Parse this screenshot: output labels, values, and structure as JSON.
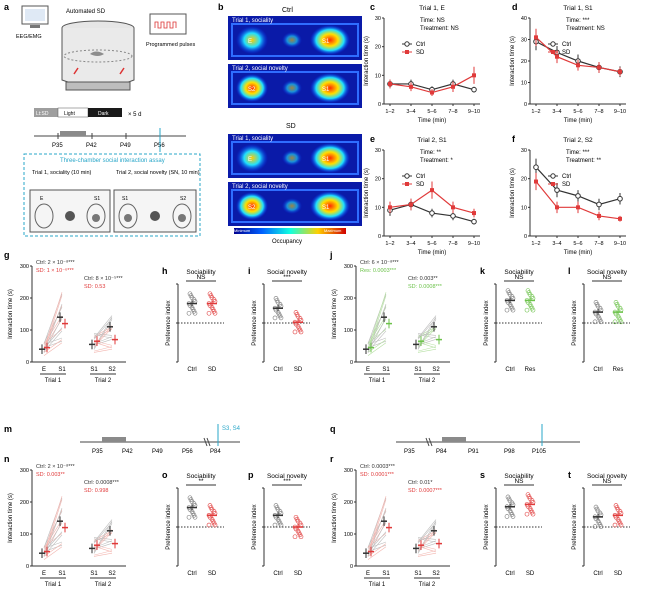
{
  "panel_a": {
    "letter": "a",
    "setup_label": "Automated SD",
    "eeg_label": "EEG/EMG",
    "pulses_label": "Programmed pulses",
    "schedule": {
      "light_sd": "Lt:SD",
      "light": "Light",
      "dark": "Dark",
      "repeat": "× 5 d"
    },
    "timeline": [
      "P35",
      "P42",
      "P49",
      "P56"
    ],
    "assay_title": "Three-chamber social interaction assay",
    "trial1": "Trial 1, sociality\n(10 min)",
    "trial2": "Trial 2, social novelty\n(SN, 10 min)",
    "chamber_labels": [
      "E",
      "S1",
      "S1",
      "S2"
    ]
  },
  "panel_b": {
    "letter": "b",
    "group_ctrl": "Ctrl",
    "group_sd": "SD",
    "tiles": [
      {
        "title": "Trial 1, sociality",
        "left": "E",
        "right": "S1"
      },
      {
        "title": "Trial 2, social novelty",
        "left": "S2",
        "right": "S1"
      },
      {
        "title": "Trial 1, sociality",
        "left": "E",
        "right": "S1"
      },
      {
        "title": "Trial 2, social novelty",
        "left": "S2",
        "right": "S1"
      }
    ],
    "colorbar_label": "Occupancy",
    "colorbar_min": "Minimum",
    "colorbar_max": "Maximum"
  },
  "chart_data": [
    {
      "id": "c",
      "type": "line",
      "title": "Trial 1, E",
      "categories": [
        "1–2",
        "3–4",
        "5–6",
        "7–8",
        "9–10"
      ],
      "xlabel": "Time (min)",
      "ylabel": "Interaction time (s)",
      "ylim": [
        0,
        30
      ],
      "yticks": [
        0,
        10,
        20,
        30
      ],
      "stats": [
        "Time: NS",
        "Treatment: NS"
      ],
      "series": [
        {
          "name": "Ctrl",
          "values": [
            7,
            7,
            5,
            7,
            5
          ],
          "err": [
            1.5,
            1.5,
            1.2,
            1.5,
            1
          ]
        },
        {
          "name": "SD",
          "values": [
            7,
            6,
            4,
            6,
            10
          ],
          "err": [
            1.5,
            1.5,
            1.2,
            1.8,
            3
          ]
        }
      ]
    },
    {
      "id": "d",
      "type": "line",
      "title": "Trial 1, S1",
      "categories": [
        "1–2",
        "3–4",
        "5–6",
        "7–8",
        "9–10"
      ],
      "xlabel": "Time (min)",
      "ylabel": "Interaction time (s)",
      "ylim": [
        0,
        40
      ],
      "yticks": [
        0,
        10,
        20,
        30,
        40
      ],
      "stats": [
        "Time: ***",
        "Treatment: NS"
      ],
      "series": [
        {
          "name": "Ctrl",
          "values": [
            29,
            24,
            20,
            17,
            15
          ],
          "err": [
            4,
            3,
            3,
            2.5,
            2.5
          ]
        },
        {
          "name": "SD",
          "values": [
            31,
            22,
            18,
            17,
            15
          ],
          "err": [
            4,
            3,
            2.5,
            2.5,
            2
          ]
        }
      ]
    },
    {
      "id": "e",
      "type": "line",
      "title": "Trial 2, S1",
      "categories": [
        "1–2",
        "3–4",
        "5–6",
        "7–8",
        "9–10"
      ],
      "xlabel": "Time (min)",
      "ylabel": "Interaction time (s)",
      "ylim": [
        0,
        30
      ],
      "yticks": [
        0,
        10,
        20,
        30
      ],
      "stats": [
        "Time: **",
        "Treatment: *"
      ],
      "series": [
        {
          "name": "Ctrl",
          "values": [
            9,
            11,
            8,
            7,
            5
          ],
          "err": [
            2,
            2,
            1.5,
            1.5,
            1
          ]
        },
        {
          "name": "SD",
          "values": [
            10,
            11,
            16,
            10,
            8
          ],
          "err": [
            2,
            2,
            3,
            2,
            1.5
          ]
        }
      ]
    },
    {
      "id": "f",
      "type": "line",
      "title": "Trial 2, S2",
      "categories": [
        "1–2",
        "3–4",
        "5–6",
        "7–8",
        "9–10"
      ],
      "xlabel": "Time (min)",
      "ylabel": "Interaction time (s)",
      "ylim": [
        0,
        30
      ],
      "yticks": [
        0,
        10,
        20,
        30
      ],
      "stats": [
        "Time: ***",
        "Treatment: **"
      ],
      "series": [
        {
          "name": "Ctrl",
          "values": [
            24,
            16,
            14,
            11,
            13
          ],
          "err": [
            3,
            2.5,
            2,
            2,
            2
          ]
        },
        {
          "name": "SD",
          "values": [
            19,
            10,
            10,
            7,
            6
          ],
          "err": [
            3,
            2,
            2,
            1.5,
            1
          ]
        }
      ]
    }
  ],
  "panel_g": {
    "letter": "g",
    "ylabel": "Interaction time (s)",
    "yticks": [
      0,
      100,
      200,
      300
    ],
    "ann": [
      "Ctrl: 2 × 10⁻⁸***",
      "SD: 1 × 10⁻⁶***",
      "Ctrl: 8 × 10⁻⁵***",
      "SD: 0.53"
    ],
    "x": [
      "E",
      "S1",
      "S1",
      "S2"
    ],
    "trials": [
      "Trial 1",
      "Trial 2"
    ]
  },
  "panel_h": {
    "letter": "h",
    "title": "Sociability",
    "sig": "NS",
    "ylabel": "Preference index",
    "groups": [
      "Ctrl",
      "SD"
    ]
  },
  "panel_i": {
    "letter": "i",
    "title": "Social novelty",
    "sig": "***",
    "ylabel": "Preference index",
    "groups": [
      "Ctrl",
      "SD"
    ]
  },
  "panel_j": {
    "letter": "j",
    "ylabel": "Interaction time (s)",
    "yticks": [
      0,
      100,
      200,
      300
    ],
    "ann": [
      "Ctrl: 6 × 10⁻⁸***",
      "Res: 0.0003***",
      "Ctrl: 0.003**",
      "SD: 0.0008***"
    ],
    "x": [
      "E",
      "S1",
      "S1",
      "S2"
    ],
    "trials": [
      "Trial 1",
      "Trial 2"
    ]
  },
  "panel_k": {
    "letter": "k",
    "title": "Sociability",
    "sig": "NS",
    "ylabel": "Preference index",
    "groups": [
      "Ctrl",
      "Res"
    ]
  },
  "panel_l": {
    "letter": "l",
    "title": "Social novelty",
    "sig": "NS",
    "ylabel": "Preference index",
    "groups": [
      "Ctrl",
      "Res"
    ]
  },
  "panel_m": {
    "letter": "m",
    "timeline": [
      "P35",
      "P42",
      "P49",
      "P56",
      "P84"
    ],
    "tag": "S3, S4"
  },
  "panel_q": {
    "letter": "q",
    "timeline": [
      "P35",
      "P84",
      "P91",
      "P98",
      "P105"
    ]
  },
  "panel_n": {
    "letter": "n",
    "ylabel": "Interaction time (s)",
    "yticks": [
      0,
      100,
      200,
      300
    ],
    "ann": [
      "Ctrl: 2 × 10⁻⁸***",
      "SD: 0.003**",
      "Ctrl: 0.0008***",
      "SD: 0.998"
    ],
    "x": [
      "E",
      "S1",
      "S1",
      "S2"
    ],
    "trials": [
      "Trial 1",
      "Trial 2"
    ]
  },
  "panel_o": {
    "letter": "o",
    "title": "Sociability",
    "sig": "**",
    "ylabel": "Preference index",
    "groups": [
      "Ctrl",
      "SD"
    ]
  },
  "panel_p": {
    "letter": "p",
    "title": "Social novelty",
    "sig": "***",
    "ylabel": "Preference index",
    "groups": [
      "Ctrl",
      "SD"
    ]
  },
  "panel_r": {
    "letter": "r",
    "ylabel": "Interaction time (s)",
    "yticks": [
      0,
      100,
      200,
      300
    ],
    "ann": [
      "Ctrl: 0.0003***",
      "SD: 0.0001***",
      "Ctrl: 0.01*",
      "SD: 0.0007***"
    ],
    "x": [
      "E",
      "S1",
      "S1",
      "S2"
    ],
    "trials": [
      "Trial 1",
      "Trial 2"
    ]
  },
  "panel_s": {
    "letter": "s",
    "title": "Sociability",
    "sig": "NS",
    "ylabel": "Preference index",
    "groups": [
      "Ctrl",
      "SD"
    ]
  },
  "panel_t": {
    "letter": "t",
    "title": "Social novelty",
    "sig": "NS",
    "ylabel": "Preference index",
    "groups": [
      "Ctrl",
      "SD"
    ]
  },
  "colors": {
    "ctrl": "#333333",
    "sd": "#e03a3a",
    "res": "#6cc24a",
    "cyan": "#2aa7c9"
  }
}
